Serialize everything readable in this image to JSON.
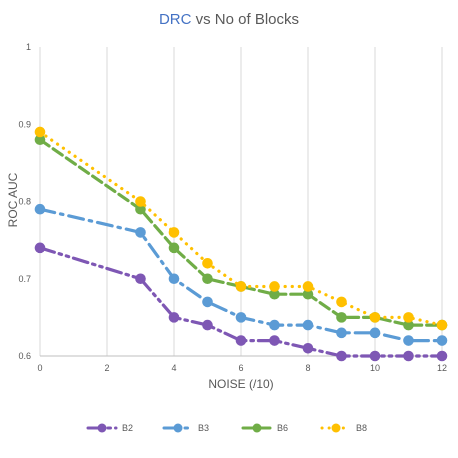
{
  "chart_data": {
    "type": "line",
    "title_prefix": "DRC",
    "title_suffix": " vs No of Blocks",
    "xlabel": "NOISE (/10)",
    "ylabel": "ROC AUC",
    "xlim": [
      0,
      12
    ],
    "ylim": [
      0.6,
      1
    ],
    "x_ticks": [
      "0",
      "2",
      "4",
      "6",
      "8",
      "10",
      "12"
    ],
    "y_ticks": [
      "0.6",
      "0.7",
      "0.8",
      "0.9",
      "1"
    ],
    "grid": "vertical lines at x ticks",
    "legend_position": "bottom",
    "series": [
      {
        "name": "B2",
        "color": "#7e57b4",
        "dash": "long-dash-dot-dot",
        "x": [
          0,
          3,
          4,
          5,
          6,
          7,
          8,
          9,
          10,
          11,
          12
        ],
        "values": [
          0.74,
          0.7,
          0.65,
          0.64,
          0.62,
          0.62,
          0.61,
          0.6,
          0.6,
          0.6,
          0.6
        ]
      },
      {
        "name": "B3",
        "color": "#5b9bd5",
        "dash": "long-dash-dot",
        "x": [
          0,
          3,
          4,
          5,
          6,
          7,
          8,
          9,
          10,
          11,
          12
        ],
        "values": [
          0.79,
          0.76,
          0.7,
          0.67,
          0.65,
          0.64,
          0.64,
          0.63,
          0.63,
          0.62,
          0.62
        ]
      },
      {
        "name": "B6",
        "color": "#70ad47",
        "dash": "dash",
        "x": [
          0,
          3,
          4,
          5,
          6,
          7,
          8,
          9,
          10,
          11,
          12
        ],
        "values": [
          0.88,
          0.79,
          0.74,
          0.7,
          0.69,
          0.68,
          0.68,
          0.65,
          0.65,
          0.64,
          0.64
        ]
      },
      {
        "name": "B8",
        "color": "#ffc000",
        "dash": "round-dot",
        "x": [
          0,
          3,
          4,
          5,
          6,
          7,
          8,
          9,
          10,
          11,
          12
        ],
        "values": [
          0.89,
          0.8,
          0.76,
          0.72,
          0.69,
          0.69,
          0.69,
          0.67,
          0.65,
          0.65,
          0.64
        ]
      }
    ]
  }
}
